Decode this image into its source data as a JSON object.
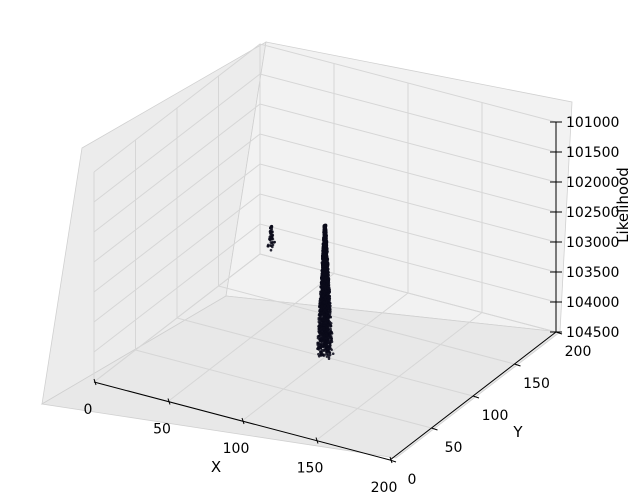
{
  "chart_data": {
    "type": "scatter",
    "projection": "3d",
    "title": "",
    "xlabel": "X",
    "ylabel": "Y",
    "zlabel": "Likelihood",
    "xlim": [
      0,
      200
    ],
    "ylim": [
      0,
      200
    ],
    "zlim": [
      -104500,
      -101000
    ],
    "x_ticks": [
      "0",
      "50",
      "100",
      "150",
      "200"
    ],
    "y_ticks": [
      "0",
      "50",
      "100",
      "150",
      "200"
    ],
    "z_ticks": [
      "101000",
      "101500",
      "102000",
      "102500",
      "103000",
      "103500",
      "104000",
      "104500"
    ],
    "grid": true,
    "series": [
      {
        "color": "#0a0a1a",
        "clusters": [
          {
            "x_center": 100,
            "y_center": 100,
            "z_peak": -102300,
            "z_base": -104500,
            "count": 2200,
            "spread": 5
          },
          {
            "x_center": 30,
            "y_center": 160,
            "z_peak": -103400,
            "z_base": -103800,
            "count": 45,
            "spread": 3
          }
        ]
      }
    ]
  }
}
